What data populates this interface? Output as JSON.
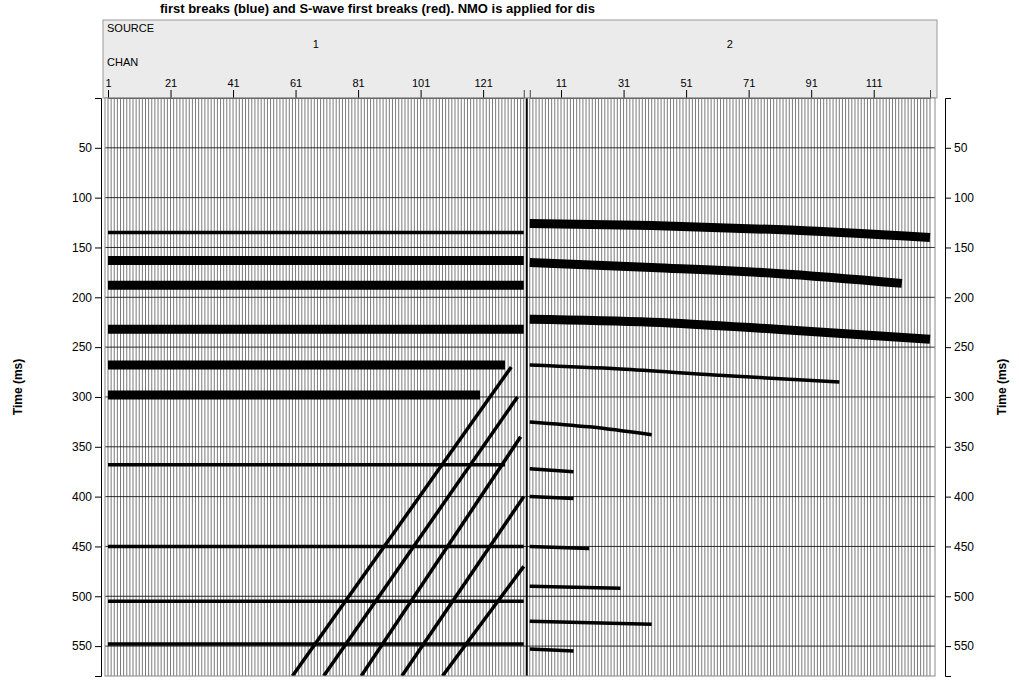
{
  "chart_data": {
    "type": "seismic_wiggle",
    "title": "first breaks (blue) and S-wave first breaks (red). NMO is applied for dis",
    "y_label": "Time (ms)",
    "source_label": "SOURCE",
    "chan_label": "CHAN",
    "ylim": [
      0,
      580
    ],
    "yticks": [
      50,
      100,
      150,
      200,
      250,
      300,
      350,
      400,
      450,
      500,
      550
    ],
    "grid": true,
    "gathers": [
      {
        "source": 1,
        "channels": [
          1,
          134
        ],
        "xticks": [
          1,
          21,
          41,
          61,
          81,
          101,
          121
        ],
        "events": [
          {
            "x": [
              1,
              134
            ],
            "values": [
              135,
              135
            ],
            "line_style": "thin"
          },
          {
            "x": [
              1,
              134
            ],
            "values": [
              163,
              163
            ],
            "line_style": "bold"
          },
          {
            "x": [
              1,
              134
            ],
            "values": [
              188,
              188
            ],
            "line_style": "bold"
          },
          {
            "x": [
              1,
              134
            ],
            "values": [
              232,
              232
            ],
            "line_style": "bold"
          },
          {
            "x": [
              1,
              128
            ],
            "values": [
              268,
              268
            ],
            "line_style": "bold"
          },
          {
            "x": [
              1,
              120
            ],
            "values": [
              298,
              298
            ],
            "line_style": "bold"
          },
          {
            "x": [
              1,
              128
            ],
            "values": [
              368,
              368
            ],
            "line_style": "thin"
          },
          {
            "x": [
              1,
              134
            ],
            "values": [
              450,
              450
            ],
            "line_style": "thin"
          },
          {
            "x": [
              1,
              134
            ],
            "values": [
              505,
              505
            ],
            "line_style": "thin"
          },
          {
            "x": [
              1,
              134
            ],
            "values": [
              548,
              548
            ],
            "line_style": "thin"
          },
          {
            "x": [
              60,
              130
            ],
            "values": [
              580,
              270
            ],
            "line_style": "thin"
          },
          {
            "x": [
              70,
              132
            ],
            "values": [
              580,
              300
            ],
            "line_style": "thin"
          },
          {
            "x": [
              82,
              133
            ],
            "values": [
              580,
              340
            ],
            "line_style": "thin"
          },
          {
            "x": [
              95,
              134
            ],
            "values": [
              580,
              400
            ],
            "line_style": "thin"
          },
          {
            "x": [
              108,
              134
            ],
            "values": [
              580,
              470
            ],
            "line_style": "thin"
          }
        ]
      },
      {
        "source": 2,
        "channels": [
          1,
          129
        ],
        "xticks": [
          11,
          31,
          51,
          71,
          91,
          111
        ],
        "events": [
          {
            "x": [
              1,
              40,
              80,
              129
            ],
            "values": [
              126,
              128,
              132,
              140
            ],
            "line_style": "bold"
          },
          {
            "x": [
              1,
              40,
              80,
              120
            ],
            "values": [
              165,
              170,
              176,
              186
            ],
            "line_style": "bold"
          },
          {
            "x": [
              1,
              40,
              80,
              129
            ],
            "values": [
              222,
              225,
              232,
              242
            ],
            "line_style": "bold"
          },
          {
            "x": [
              1,
              30,
              60,
              100
            ],
            "values": [
              268,
              272,
              278,
              285
            ],
            "line_style": "thin"
          },
          {
            "x": [
              1,
              20,
              40
            ],
            "values": [
              325,
              330,
              338
            ],
            "line_style": "thin"
          },
          {
            "x": [
              1,
              15
            ],
            "values": [
              372,
              375
            ],
            "line_style": "thin"
          },
          {
            "x": [
              1,
              15
            ],
            "values": [
              400,
              402
            ],
            "line_style": "thin"
          },
          {
            "x": [
              1,
              20
            ],
            "values": [
              450,
              452
            ],
            "line_style": "thin"
          },
          {
            "x": [
              1,
              30
            ],
            "values": [
              490,
              492
            ],
            "line_style": "thin"
          },
          {
            "x": [
              1,
              40
            ],
            "values": [
              525,
              528
            ],
            "line_style": "thin"
          },
          {
            "x": [
              1,
              15
            ],
            "values": [
              553,
              555
            ],
            "line_style": "thin"
          }
        ]
      }
    ]
  }
}
